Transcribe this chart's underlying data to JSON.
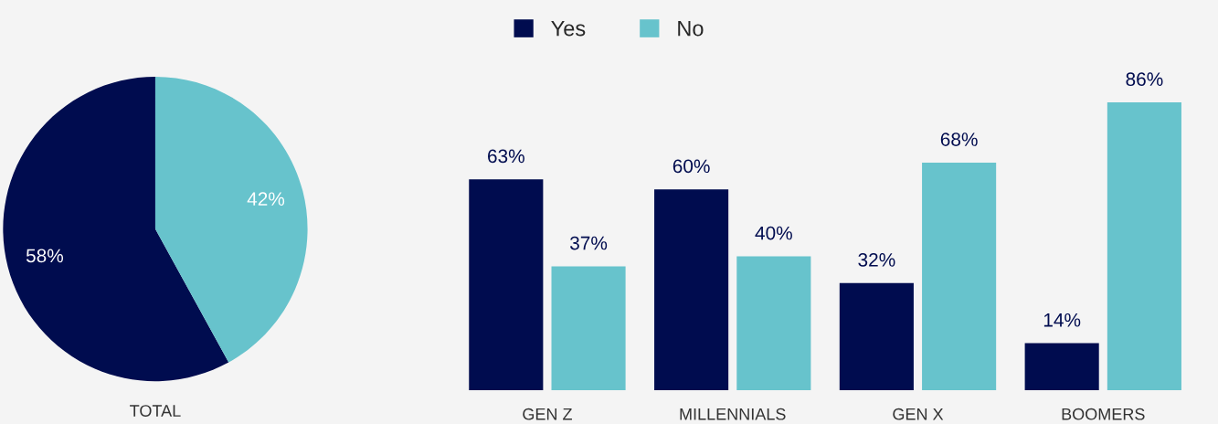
{
  "chart_data": [
    {
      "type": "pie",
      "xlabel": "TOTAL",
      "legend": "top",
      "categories": [
        "Yes",
        "No"
      ],
      "values": [
        58,
        42
      ],
      "colors": [
        "#000c4f",
        "#67c3cc"
      ],
      "value_labels": [
        "58%",
        "42%"
      ]
    },
    {
      "type": "bar",
      "categories": [
        "GEN Z",
        "MILLENNIALS",
        "GEN X",
        "BOOMERS"
      ],
      "series": [
        {
          "color": "#000c4f",
          "values": [
            63,
            60,
            32,
            14
          ],
          "value_labels": [
            "63%",
            "60%",
            "32%",
            "14%"
          ]
        },
        {
          "color": "#67c3cc",
          "values": [
            37,
            40,
            68,
            86
          ],
          "value_labels": [
            "37%",
            "40%",
            "68%",
            "86%"
          ]
        }
      ]
    }
  ]
}
